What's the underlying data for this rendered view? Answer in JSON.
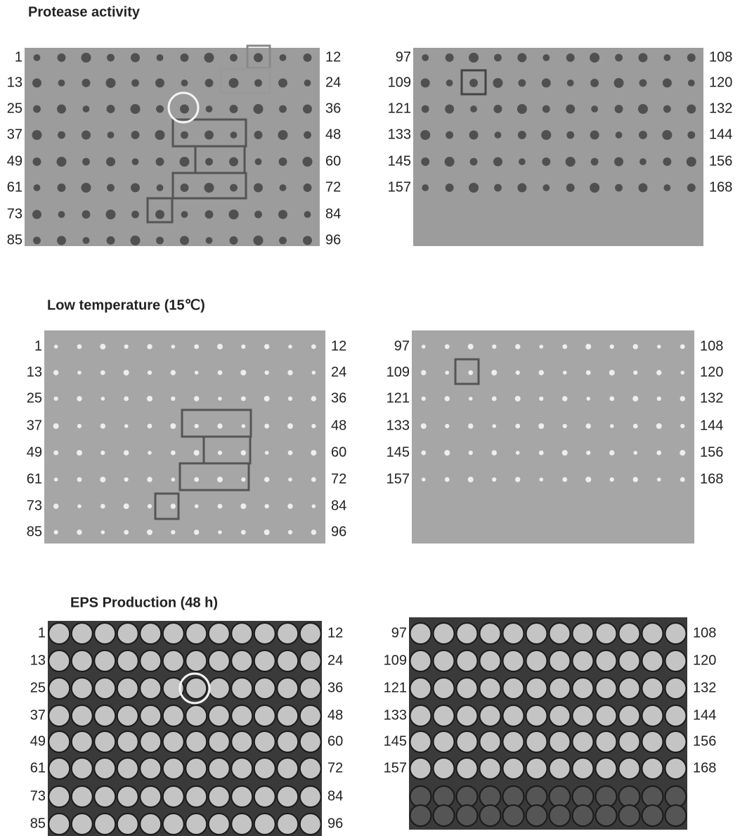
{
  "sections": [
    {
      "title": "Protease activity",
      "left_plate": {
        "start_labels": [
          "1",
          "13",
          "25",
          "37",
          "49",
          "61",
          "73",
          "85"
        ],
        "end_labels": [
          "12",
          "24",
          "36",
          "48",
          "60",
          "72",
          "84",
          "96"
        ]
      },
      "right_plate": {
        "start_labels": [
          "97",
          "109",
          "121",
          "133",
          "145",
          "157"
        ],
        "end_labels": [
          "108",
          "120",
          "132",
          "144",
          "156",
          "168"
        ]
      }
    },
    {
      "title": "Low temperature (15℃)",
      "left_plate": {
        "start_labels": [
          "1",
          "13",
          "25",
          "37",
          "49",
          "61",
          "73",
          "85"
        ],
        "end_labels": [
          "12",
          "24",
          "36",
          "48",
          "60",
          "72",
          "84",
          "96"
        ]
      },
      "right_plate": {
        "start_labels": [
          "97",
          "109",
          "121",
          "133",
          "145",
          "157"
        ],
        "end_labels": [
          "108",
          "120",
          "132",
          "144",
          "156",
          "168"
        ]
      }
    },
    {
      "title": "EPS Production (48 h)",
      "left_plate": {
        "start_labels": [
          "1",
          "13",
          "25",
          "37",
          "49",
          "61",
          "73",
          "85"
        ],
        "end_labels": [
          "12",
          "24",
          "36",
          "48",
          "60",
          "72",
          "84",
          "96"
        ]
      },
      "right_plate": {
        "start_labels": [
          "97",
          "109",
          "121",
          "133",
          "145",
          "157"
        ],
        "end_labels": [
          "108",
          "120",
          "132",
          "144",
          "156",
          "168"
        ]
      }
    }
  ]
}
